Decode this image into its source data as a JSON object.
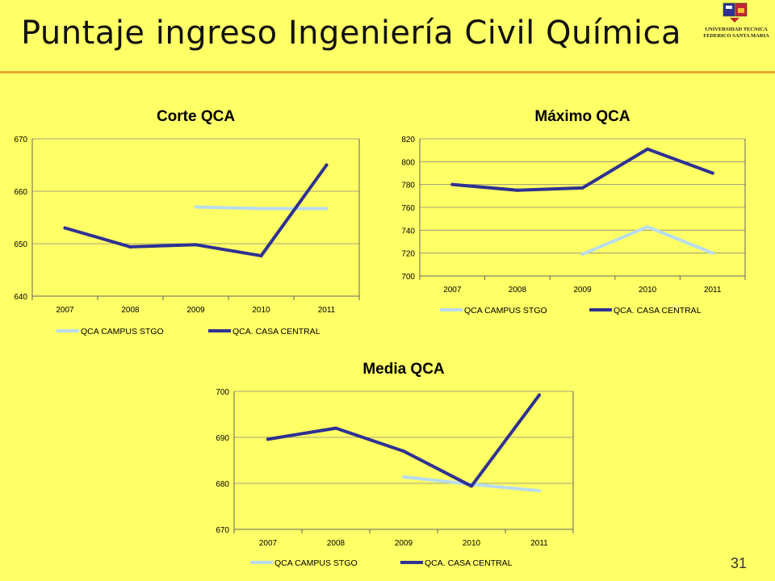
{
  "page": {
    "title": "Puntaje ingreso Ingeniería Civil Química",
    "page_number": "31",
    "logo": {
      "line1": "UNIVERSIDAD TECNICA",
      "line2": "FEDERICO SANTA MARIA"
    }
  },
  "colors": {
    "background": "#FFFF66",
    "rule": "#E8A830",
    "campus_stgo": "#B8DCEE",
    "casa_central": "#2E3192"
  },
  "chart_data": [
    {
      "type": "line",
      "title": "Corte QCA",
      "categories": [
        "2007",
        "2008",
        "2009",
        "2010",
        "2011"
      ],
      "ylim": [
        640,
        670
      ],
      "yticks": [
        640,
        650,
        660,
        670
      ],
      "grid": true,
      "legend": "bottom",
      "series": [
        {
          "name": "QCA CAMPUS STGO",
          "values": [
            null,
            null,
            657,
            656.7,
            656.7
          ]
        },
        {
          "name": "QCA. CASA CENTRAL",
          "values": [
            653,
            649.4,
            649.8,
            647.7,
            665
          ]
        }
      ]
    },
    {
      "type": "line",
      "title": "Máximo QCA",
      "categories": [
        "2007",
        "2008",
        "2009",
        "2010",
        "2011"
      ],
      "ylim": [
        700,
        820
      ],
      "yticks": [
        700,
        720,
        740,
        760,
        780,
        800,
        820
      ],
      "grid": true,
      "legend": "bottom",
      "series": [
        {
          "name": "QCA CAMPUS STGO",
          "values": [
            null,
            null,
            719,
            743,
            720
          ]
        },
        {
          "name": "QCA. CASA CENTRAL",
          "values": [
            780,
            775,
            777,
            811,
            790
          ]
        }
      ]
    },
    {
      "type": "line",
      "title": "Media QCA",
      "categories": [
        "2007",
        "2008",
        "2009",
        "2010",
        "2011"
      ],
      "ylim": [
        670,
        700
      ],
      "yticks": [
        670,
        680,
        690,
        700
      ],
      "grid": true,
      "legend": "bottom",
      "series": [
        {
          "name": "QCA CAMPUS STGO",
          "values": [
            null,
            null,
            681.4,
            679.8,
            678.4
          ]
        },
        {
          "name": "QCA. CASA CENTRAL",
          "values": [
            689.6,
            692,
            687,
            679.4,
            699.2
          ]
        }
      ]
    }
  ]
}
